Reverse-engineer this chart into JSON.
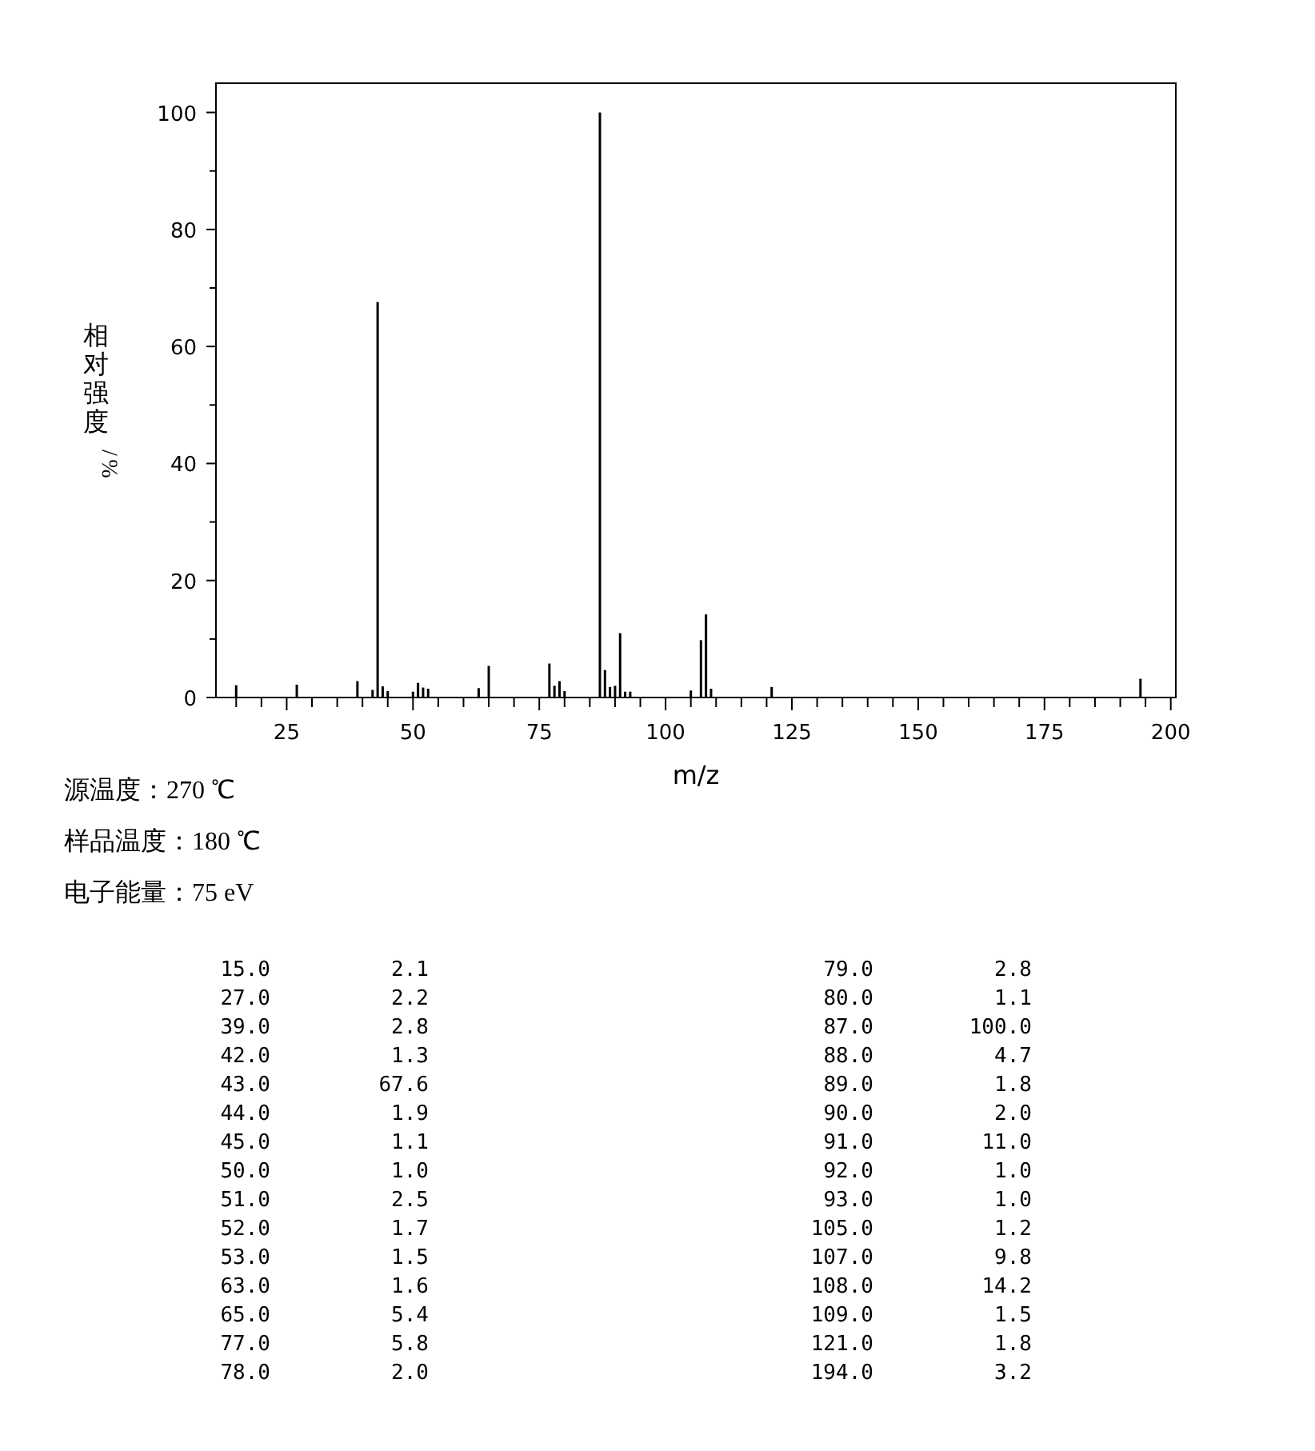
{
  "chart_data": {
    "type": "bar",
    "xlabel": "m/z",
    "ylabel": "相对强度/%",
    "x": [
      15,
      27,
      39,
      42,
      43,
      44,
      45,
      50,
      51,
      52,
      53,
      63,
      65,
      77,
      78,
      79,
      80,
      87,
      88,
      89,
      90,
      91,
      92,
      93,
      105,
      107,
      108,
      109,
      121,
      194
    ],
    "values": [
      2.1,
      2.2,
      2.8,
      1.3,
      67.6,
      1.9,
      1.1,
      1.0,
      2.5,
      1.7,
      1.5,
      1.6,
      5.4,
      5.8,
      2.0,
      2.8,
      1.1,
      100.0,
      4.7,
      1.8,
      2.0,
      11.0,
      1.0,
      1.0,
      1.2,
      9.8,
      14.2,
      1.5,
      1.8,
      3.2
    ],
    "color": "#000000",
    "xlim": [
      11,
      201
    ],
    "xticks": [
      {
        "value": 15,
        "label": null
      },
      {
        "value": 20,
        "label": null
      },
      25,
      {
        "value": 30,
        "label": null
      },
      {
        "value": 35,
        "label": null
      },
      {
        "value": 40,
        "label": null
      },
      {
        "value": 45,
        "label": null
      },
      50,
      {
        "value": 55,
        "label": null
      },
      {
        "value": 60,
        "label": null
      },
      {
        "value": 65,
        "label": null
      },
      {
        "value": 70,
        "label": null
      },
      75,
      {
        "value": 80,
        "label": null
      },
      {
        "value": 85,
        "label": null
      },
      {
        "value": 90,
        "label": null
      },
      {
        "value": 95,
        "label": null
      },
      100,
      {
        "value": 105,
        "label": null
      },
      {
        "value": 110,
        "label": null
      },
      {
        "value": 115,
        "label": null
      },
      {
        "value": 120,
        "label": null
      },
      125,
      {
        "value": 130,
        "label": null
      },
      {
        "value": 135,
        "label": null
      },
      {
        "value": 140,
        "label": null
      },
      {
        "value": 145,
        "label": null
      },
      150,
      {
        "value": 155,
        "label": null
      },
      {
        "value": 160,
        "label": null
      },
      {
        "value": 165,
        "label": null
      },
      {
        "value": 170,
        "label": null
      },
      175,
      {
        "value": 180,
        "label": null
      },
      {
        "value": 185,
        "label": null
      },
      {
        "value": 190,
        "label": null
      },
      {
        "value": 195,
        "label": null
      },
      200
    ],
    "ylim": [
      0,
      105
    ],
    "yticks": [
      0,
      {
        "value": 10,
        "label": null
      },
      20,
      {
        "value": 30,
        "label": null
      },
      40,
      {
        "value": 50,
        "label": null
      },
      60,
      {
        "value": 70,
        "label": null
      },
      80,
      {
        "value": 90,
        "label": null
      },
      100
    ],
    "annotations": [
      "源温度：270 ℃",
      "样品温度：180 ℃",
      "电子能量：75 eV",
      "15.0",
      "2.1",
      "27.0",
      "2.2",
      "39.0",
      "2.8",
      "42.0",
      "1.3",
      "43.0",
      "67.6",
      "44.0",
      "1.9",
      "45.0",
      "1.1",
      "50.0",
      "1.0",
      "51.0",
      "2.5",
      "52.0",
      "1.7",
      "53.0",
      "1.5",
      "63.0",
      "1.6",
      "65.0",
      "5.4",
      "77.0",
      "5.8",
      "78.0",
      "2.0",
      "79.0",
      "2.8",
      "80.0",
      "1.1",
      "87.0",
      "100.0",
      "88.0",
      "4.7",
      "89.0",
      "1.8",
      "90.0",
      "2.0",
      "91.0",
      "11.0",
      "92.0",
      "1.0",
      "93.0",
      "1.0",
      "105.0",
      "1.2",
      "107.0",
      "9.8",
      "108.0",
      "14.2",
      "109.0",
      "1.5",
      "121.0",
      "1.8",
      "194.0",
      "3.2"
    ],
    "grid": false
  }
}
